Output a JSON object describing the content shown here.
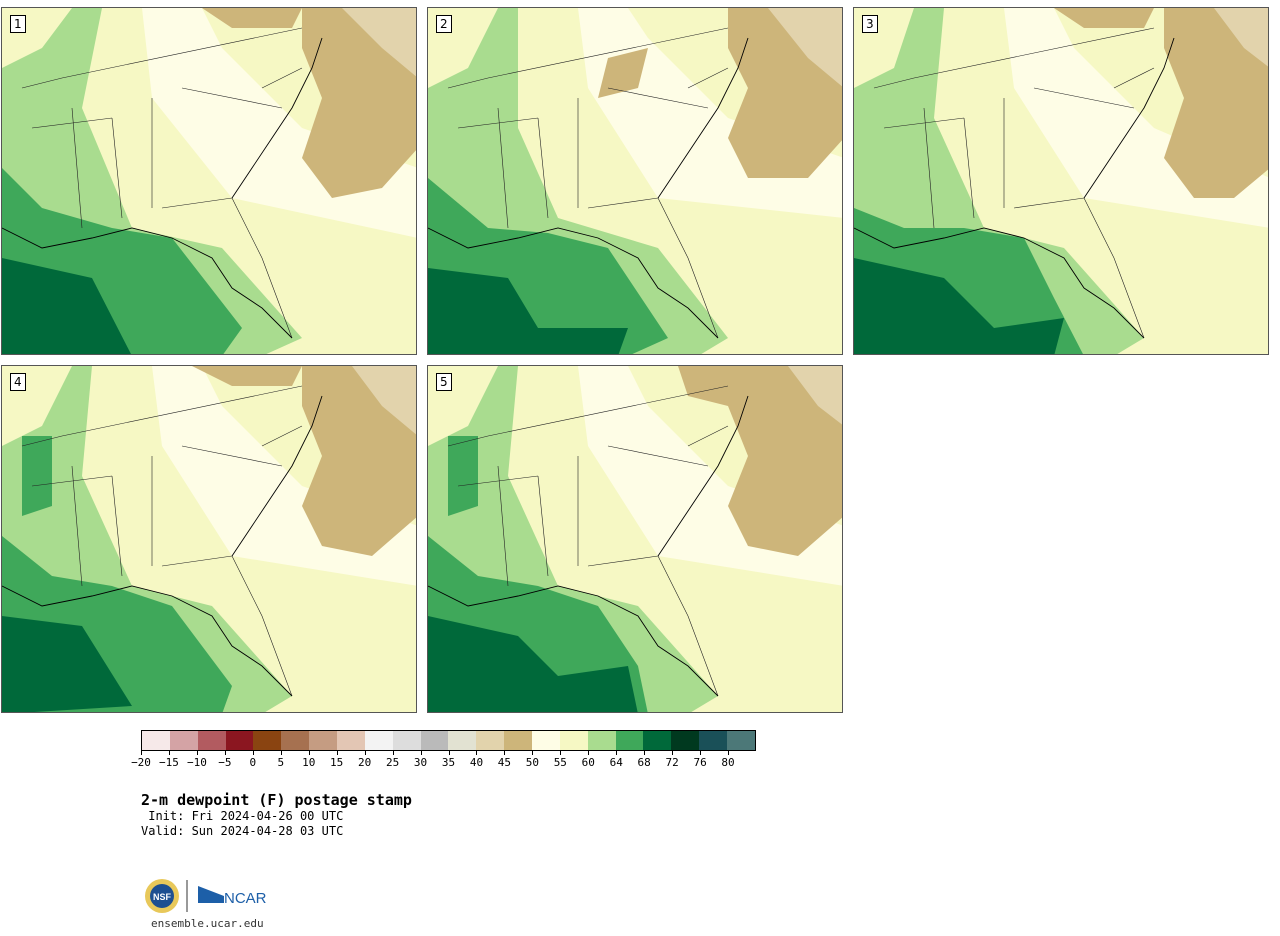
{
  "panels": [
    {
      "label": "1"
    },
    {
      "label": "2"
    },
    {
      "label": "3"
    },
    {
      "label": "4"
    },
    {
      "label": "5"
    }
  ],
  "colorbar": {
    "colors": [
      "#f6e9e9",
      "#d4a3a5",
      "#b25b60",
      "#8b1620",
      "#8a4411",
      "#a67150",
      "#c59c82",
      "#e3c6b4",
      "#f3f3f3",
      "#dddddd",
      "#bababa",
      "#e2e2d2",
      "#e2d3ac",
      "#cdb57a",
      "#fefde6",
      "#f6f8c4",
      "#a9dc8f",
      "#3fa85a",
      "#00693a",
      "#00391f",
      "#1a5058",
      "#4c7878"
    ],
    "ticks": [
      "−20",
      "−15",
      "−10",
      "−5",
      "0",
      "5",
      "10",
      "15",
      "20",
      "25",
      "30",
      "35",
      "40",
      "45",
      "50",
      "55",
      "60",
      "64",
      "68",
      "72",
      "76",
      "80"
    ]
  },
  "title": "2-m dewpoint (F) postage stamp",
  "init": " Init: Fri 2024-04-26 00 UTC",
  "valid": "Valid: Sun 2024-04-28 03 UTC",
  "logos": {
    "nsf": "NSF",
    "ncar": "NCAR"
  },
  "site": "ensemble.ucar.edu"
}
